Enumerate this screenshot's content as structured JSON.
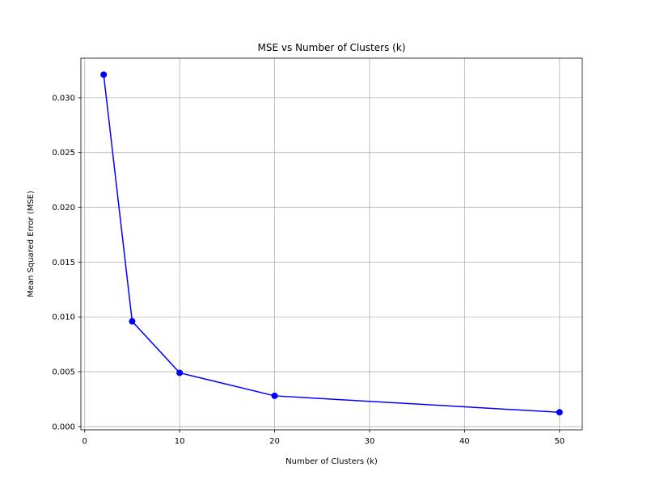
{
  "chart_data": {
    "type": "line",
    "title": "MSE vs Number of Clusters (k)",
    "xlabel": "Number of Clusters (k)",
    "ylabel": "Mean Squared Error (MSE)",
    "xlim": [
      -0.4,
      52.4
    ],
    "ylim": [
      -0.0003,
      0.0336
    ],
    "xticks": [
      0,
      10,
      20,
      30,
      40,
      50
    ],
    "xtick_labels": [
      "0",
      "10",
      "20",
      "30",
      "40",
      "50"
    ],
    "yticks": [
      0.0,
      0.005,
      0.01,
      0.015,
      0.02,
      0.025,
      0.03
    ],
    "ytick_labels": [
      "0.000",
      "0.005",
      "0.010",
      "0.015",
      "0.020",
      "0.025",
      "0.030"
    ],
    "grid": true,
    "legend": "none",
    "series": [
      {
        "color": "#0000ff",
        "marker": "circle",
        "x": [
          2,
          5,
          10,
          20,
          50
        ],
        "y": [
          0.0321,
          0.0096,
          0.0049,
          0.0028,
          0.0013
        ]
      }
    ]
  }
}
